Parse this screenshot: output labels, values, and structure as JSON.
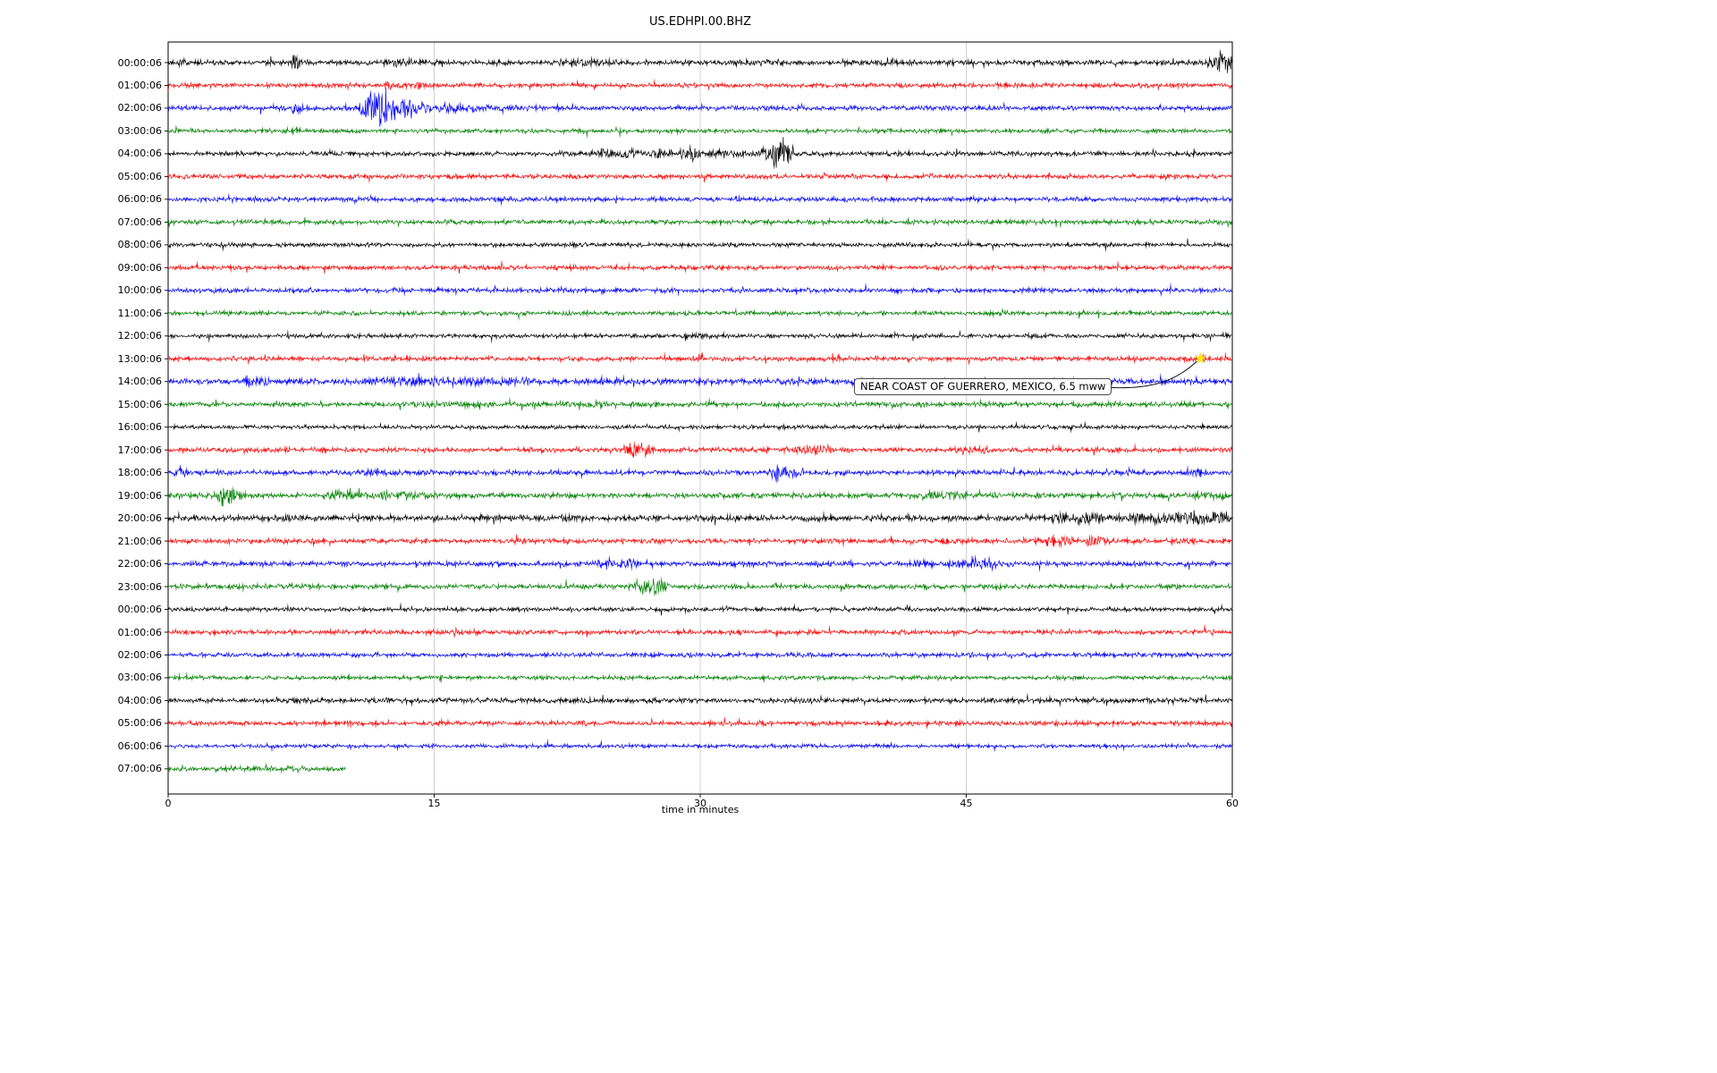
{
  "chart_data": {
    "type": "line",
    "subtype": "seismogram-dayplot",
    "title": "US.EDHPI.00.BHZ",
    "xlabel": "time in minutes",
    "xlim": [
      0,
      60
    ],
    "x_ticks": [
      0,
      15,
      30,
      45,
      60
    ],
    "grid": {
      "vertical_lines": [
        15,
        30,
        45
      ],
      "color": "#c8c8c8",
      "on": true
    },
    "legend": "none",
    "colors_cycle": [
      "#000000",
      "#ff0000",
      "#0000ff",
      "#008000"
    ],
    "annotation": {
      "text": "NEAR COAST OF GUERRERO, MEXICO, 6.5 mww",
      "trace_label": "13:00:06",
      "trace_index": 13,
      "marker": "star",
      "marker_color": "#ffe800",
      "marker_x_minutes": 58.2
    },
    "traces": [
      {
        "label": "00:00:06",
        "color": "#000000",
        "noise": 1.3,
        "bursts": [
          {
            "x": 0.6,
            "w": 1.0,
            "a": 2.5
          },
          {
            "x": 7.2,
            "w": 0.25,
            "a": 8
          },
          {
            "x": 13.2,
            "w": 1.0,
            "a": 3
          },
          {
            "x": 23.8,
            "w": 1.4,
            "a": 3
          },
          {
            "x": 33.2,
            "w": 1.2,
            "a": 2.8
          },
          {
            "x": 40.8,
            "w": 0.4,
            "a": 2.5
          },
          {
            "x": 59.5,
            "w": 0.5,
            "a": 11
          }
        ]
      },
      {
        "label": "01:00:06",
        "color": "#ff0000",
        "noise": 1.2,
        "bursts": [
          {
            "x": 13.0,
            "w": 0.8,
            "a": 2.5
          },
          {
            "x": 14.2,
            "w": 0.3,
            "a": 5
          }
        ]
      },
      {
        "label": "02:00:06",
        "color": "#0000ff",
        "noise": 1.2,
        "bursts": [
          {
            "x": 7.3,
            "w": 0.4,
            "a": 5
          },
          {
            "x": 9.7,
            "w": 0.3,
            "a": 4
          },
          {
            "x": 11.7,
            "w": 0.5,
            "a": 22
          },
          {
            "x": 12.4,
            "w": 0.8,
            "a": 13
          },
          {
            "x": 13.4,
            "w": 1.2,
            "a": 7
          },
          {
            "x": 15.0,
            "w": 2.0,
            "a": 3.5
          },
          {
            "x": 18.0,
            "w": 2.5,
            "a": 2.0
          }
        ]
      },
      {
        "label": "03:00:06",
        "color": "#008000",
        "noise": 1.1,
        "bursts": [
          {
            "x": 7.1,
            "w": 0.2,
            "a": 3
          }
        ]
      },
      {
        "label": "04:00:06",
        "color": "#000000",
        "noise": 1.2,
        "bursts": [
          {
            "x": 24.6,
            "w": 0.8,
            "a": 4
          },
          {
            "x": 26.1,
            "w": 0.5,
            "a": 5
          },
          {
            "x": 27.6,
            "w": 0.6,
            "a": 5
          },
          {
            "x": 29.4,
            "w": 0.3,
            "a": 8
          },
          {
            "x": 31.0,
            "w": 2.0,
            "a": 3
          },
          {
            "x": 34.3,
            "w": 0.5,
            "a": 13
          },
          {
            "x": 34.9,
            "w": 0.3,
            "a": 16
          }
        ]
      },
      {
        "label": "05:00:06",
        "color": "#ff0000",
        "noise": 1.2,
        "bursts": []
      },
      {
        "label": "06:00:06",
        "color": "#0000ff",
        "noise": 1.2,
        "bursts": [
          {
            "x": 11.0,
            "w": 0.8,
            "a": 2.5
          }
        ]
      },
      {
        "label": "07:00:06",
        "color": "#008000",
        "noise": 1.2,
        "bursts": []
      },
      {
        "label": "08:00:06",
        "color": "#000000",
        "noise": 1.1,
        "bursts": []
      },
      {
        "label": "09:00:06",
        "color": "#ff0000",
        "noise": 1.2,
        "bursts": []
      },
      {
        "label": "10:00:06",
        "color": "#0000ff",
        "noise": 1.2,
        "bursts": []
      },
      {
        "label": "11:00:06",
        "color": "#008000",
        "noise": 1.1,
        "bursts": []
      },
      {
        "label": "12:00:06",
        "color": "#000000",
        "noise": 1.1,
        "bursts": [
          {
            "x": 30.0,
            "w": 1.0,
            "a": 2
          }
        ]
      },
      {
        "label": "13:00:06",
        "color": "#ff0000",
        "noise": 1.2,
        "bursts": [
          {
            "x": 58.2,
            "w": 0.4,
            "a": 3
          }
        ]
      },
      {
        "label": "14:00:06",
        "color": "#0000ff",
        "noise": 1.5,
        "bursts": [
          {
            "x": 4.6,
            "w": 0.3,
            "a": 6
          },
          {
            "x": 5.3,
            "w": 0.5,
            "a": 4
          },
          {
            "x": 13.5,
            "w": 1.5,
            "a": 4
          },
          {
            "x": 15.6,
            "w": 1.0,
            "a": 3.5
          },
          {
            "x": 17.6,
            "w": 1.5,
            "a": 3.5
          },
          {
            "x": 20.0,
            "w": 1.0,
            "a": 2.5
          },
          {
            "x": 26.0,
            "w": 2.0,
            "a": 2
          },
          {
            "x": 36.0,
            "w": 2.0,
            "a": 2
          }
        ]
      },
      {
        "label": "15:00:06",
        "color": "#008000",
        "noise": 1.3,
        "bursts": [
          {
            "x": 15.5,
            "w": 1.5,
            "a": 2.5
          },
          {
            "x": 23.5,
            "w": 1.5,
            "a": 2.5
          },
          {
            "x": 27.0,
            "w": 1.0,
            "a": 2
          }
        ]
      },
      {
        "label": "16:00:06",
        "color": "#000000",
        "noise": 1.1,
        "bursts": []
      },
      {
        "label": "17:00:06",
        "color": "#ff0000",
        "noise": 1.3,
        "bursts": [
          {
            "x": 26.3,
            "w": 0.4,
            "a": 8
          },
          {
            "x": 27.0,
            "w": 0.3,
            "a": 7
          },
          {
            "x": 35.6,
            "w": 1.5,
            "a": 3
          },
          {
            "x": 36.9,
            "w": 0.4,
            "a": 4
          },
          {
            "x": 46.0,
            "w": 0.8,
            "a": 3
          }
        ]
      },
      {
        "label": "18:00:06",
        "color": "#0000ff",
        "noise": 1.3,
        "bursts": [
          {
            "x": 0.7,
            "w": 0.25,
            "a": 7
          },
          {
            "x": 11.5,
            "w": 0.8,
            "a": 3
          },
          {
            "x": 34.4,
            "w": 0.3,
            "a": 10
          },
          {
            "x": 35.0,
            "w": 0.5,
            "a": 5
          },
          {
            "x": 58.0,
            "w": 0.3,
            "a": 4
          }
        ]
      },
      {
        "label": "19:00:06",
        "color": "#008000",
        "noise": 1.4,
        "bursts": [
          {
            "x": 3.1,
            "w": 0.25,
            "a": 14
          },
          {
            "x": 3.6,
            "w": 0.4,
            "a": 8
          },
          {
            "x": 9.8,
            "w": 0.8,
            "a": 4
          },
          {
            "x": 11.6,
            "w": 1.5,
            "a": 4
          },
          {
            "x": 13.6,
            "w": 1.0,
            "a": 3
          },
          {
            "x": 43.0,
            "w": 0.8,
            "a": 4
          },
          {
            "x": 44.4,
            "w": 0.5,
            "a": 4
          },
          {
            "x": 58.6,
            "w": 1.0,
            "a": 3
          },
          {
            "x": 59.7,
            "w": 0.3,
            "a": 4
          }
        ]
      },
      {
        "label": "20:00:06",
        "color": "#000000",
        "noise": 1.6,
        "bursts": [
          {
            "x": 7.0,
            "w": 0.5,
            "a": 3
          },
          {
            "x": 23.0,
            "w": 1.0,
            "a": 2.5
          },
          {
            "x": 50.8,
            "w": 1.0,
            "a": 5
          },
          {
            "x": 52.1,
            "w": 0.8,
            "a": 4
          },
          {
            "x": 54.6,
            "w": 1.5,
            "a": 4
          },
          {
            "x": 56.6,
            "w": 1.0,
            "a": 5
          },
          {
            "x": 57.6,
            "w": 0.3,
            "a": 8
          },
          {
            "x": 58.9,
            "w": 0.8,
            "a": 6
          },
          {
            "x": 59.5,
            "w": 0.4,
            "a": 7
          }
        ]
      },
      {
        "label": "21:00:06",
        "color": "#ff0000",
        "noise": 1.3,
        "bursts": [
          {
            "x": 44.0,
            "w": 0.5,
            "a": 2.5
          },
          {
            "x": 50.0,
            "w": 0.4,
            "a": 7
          },
          {
            "x": 50.6,
            "w": 0.3,
            "a": 5
          },
          {
            "x": 52.3,
            "w": 0.4,
            "a": 6
          }
        ]
      },
      {
        "label": "22:00:06",
        "color": "#0000ff",
        "noise": 1.3,
        "bursts": [
          {
            "x": 24.8,
            "w": 0.6,
            "a": 4
          },
          {
            "x": 25.9,
            "w": 0.8,
            "a": 4.5
          },
          {
            "x": 42.4,
            "w": 0.4,
            "a": 3.5
          },
          {
            "x": 44.6,
            "w": 0.8,
            "a": 4
          },
          {
            "x": 45.9,
            "w": 0.6,
            "a": 5
          },
          {
            "x": 46.4,
            "w": 0.3,
            "a": 4
          }
        ]
      },
      {
        "label": "23:00:06",
        "color": "#008000",
        "noise": 1.3,
        "bursts": [
          {
            "x": 4.0,
            "w": 0.3,
            "a": 3
          },
          {
            "x": 26.7,
            "w": 0.3,
            "a": 8
          },
          {
            "x": 27.3,
            "w": 0.5,
            "a": 9
          },
          {
            "x": 27.9,
            "w": 0.3,
            "a": 6
          }
        ]
      },
      {
        "label": "00:00:06",
        "color": "#000000",
        "noise": 1.1,
        "bursts": []
      },
      {
        "label": "01:00:06",
        "color": "#ff0000",
        "noise": 1.2,
        "bursts": []
      },
      {
        "label": "02:00:06",
        "color": "#0000ff",
        "noise": 1.2,
        "bursts": []
      },
      {
        "label": "03:00:06",
        "color": "#008000",
        "noise": 1.1,
        "bursts": []
      },
      {
        "label": "04:00:06",
        "color": "#000000",
        "noise": 1.3,
        "bursts": []
      },
      {
        "label": "05:00:06",
        "color": "#ff0000",
        "noise": 1.2,
        "bursts": []
      },
      {
        "label": "06:00:06",
        "color": "#0000ff",
        "noise": 1.0,
        "bursts": []
      },
      {
        "label": "07:00:06",
        "color": "#008000",
        "noise": 1.2,
        "end_minute": 10,
        "bursts": [
          {
            "x": 5.0,
            "w": 4.0,
            "a": 1.5
          }
        ]
      }
    ]
  }
}
